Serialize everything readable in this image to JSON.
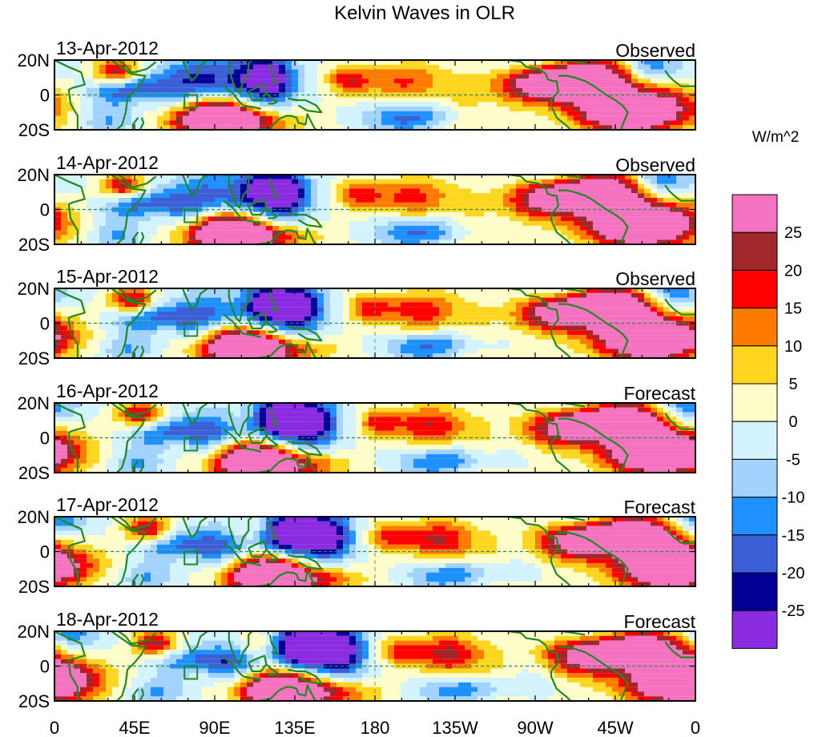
{
  "title": "Kelvin Waves in OLR",
  "chart_data": {
    "type": "heatmap",
    "panels": [
      {
        "date": "13-Apr-2012",
        "status": "Observed"
      },
      {
        "date": "14-Apr-2012",
        "status": "Observed"
      },
      {
        "date": "15-Apr-2012",
        "status": "Observed"
      },
      {
        "date": "16-Apr-2012",
        "status": "Forecast"
      },
      {
        "date": "17-Apr-2012",
        "status": "Forecast"
      },
      {
        "date": "18-Apr-2012",
        "status": "Forecast"
      }
    ],
    "lat_ticks": [
      "20N",
      "0",
      "20S"
    ],
    "lon_ticks": [
      "0",
      "45E",
      "90E",
      "135E",
      "180",
      "135W",
      "90W",
      "45W",
      "0"
    ],
    "lat_range": [
      -20,
      20
    ],
    "lon_range": [
      0,
      360
    ],
    "colorbar": {
      "unit": "W/m^2",
      "labels": [
        "25",
        "20",
        "15",
        "10",
        "5",
        "0",
        "-5",
        "-10",
        "-15",
        "-20",
        "-25"
      ],
      "colors": [
        "#f472c0",
        "#a0282a",
        "#ff0000",
        "#ff7b00",
        "#ffd61f",
        "#fffdc9",
        "#d3f3ff",
        "#a2d2ff",
        "#1e90ff",
        "#3b5fd6",
        "#000097",
        "#8a2be2"
      ]
    },
    "map_colors": {
      "coastline": "#1f8a1f",
      "equator": "#2e8b57"
    }
  }
}
